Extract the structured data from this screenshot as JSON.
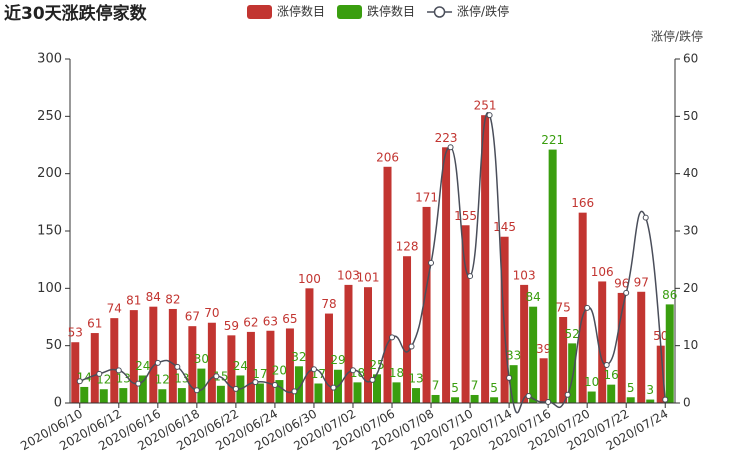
{
  "chart_data": {
    "type": "bar-line",
    "title": "近30天涨跌停家数",
    "y2_label": "涨停/跌停",
    "categories": [
      "2020/06/10",
      null,
      "2020/06/12",
      null,
      "2020/06/16",
      null,
      "2020/06/18",
      null,
      "2020/06/22",
      null,
      "2020/06/24",
      null,
      "2020/06/30",
      null,
      "2020/07/02",
      null,
      "2020/07/06",
      null,
      "2020/07/08",
      null,
      "2020/07/10",
      null,
      "2020/07/14",
      null,
      "2020/07/16",
      null,
      "2020/07/20",
      null,
      "2020/07/22",
      null,
      "2020/07/24"
    ],
    "series": [
      {
        "name": "涨停数目",
        "type": "bar",
        "color": "#c23531",
        "values": [
          53,
          61,
          74,
          81,
          84,
          82,
          67,
          70,
          59,
          62,
          63,
          65,
          100,
          78,
          103,
          101,
          206,
          128,
          171,
          223,
          155,
          251,
          145,
          103,
          39,
          75,
          166,
          106,
          96,
          97,
          50
        ]
      },
      {
        "name": "跌停数目",
        "type": "bar",
        "color": "#3a9e0f",
        "values": [
          14,
          12,
          13,
          24,
          12,
          13,
          30,
          15,
          24,
          17,
          20,
          32,
          17,
          29,
          18,
          25,
          18,
          13,
          7,
          5,
          7,
          5,
          33,
          84,
          221,
          52,
          10,
          16,
          5,
          3,
          86
        ]
      },
      {
        "name": "涨停/跌停",
        "type": "line",
        "axis": "y2",
        "color": "#4a4e5a",
        "values": [
          3.79,
          5.08,
          5.69,
          3.38,
          7.0,
          6.31,
          2.23,
          4.67,
          2.46,
          3.65,
          3.15,
          2.03,
          5.88,
          2.69,
          5.72,
          4.04,
          11.44,
          9.85,
          24.43,
          44.6,
          22.14,
          50.2,
          4.39,
          1.23,
          0.18,
          1.44,
          16.6,
          6.63,
          19.2,
          32.33,
          0.58
        ]
      }
    ],
    "ylim": [
      0,
      300
    ],
    "yticks": [
      0,
      50,
      100,
      150,
      200,
      250,
      300
    ],
    "y2lim": [
      0,
      60
    ],
    "y2ticks": [
      0,
      10,
      20,
      30,
      40,
      50,
      60
    ],
    "legend": "top"
  }
}
